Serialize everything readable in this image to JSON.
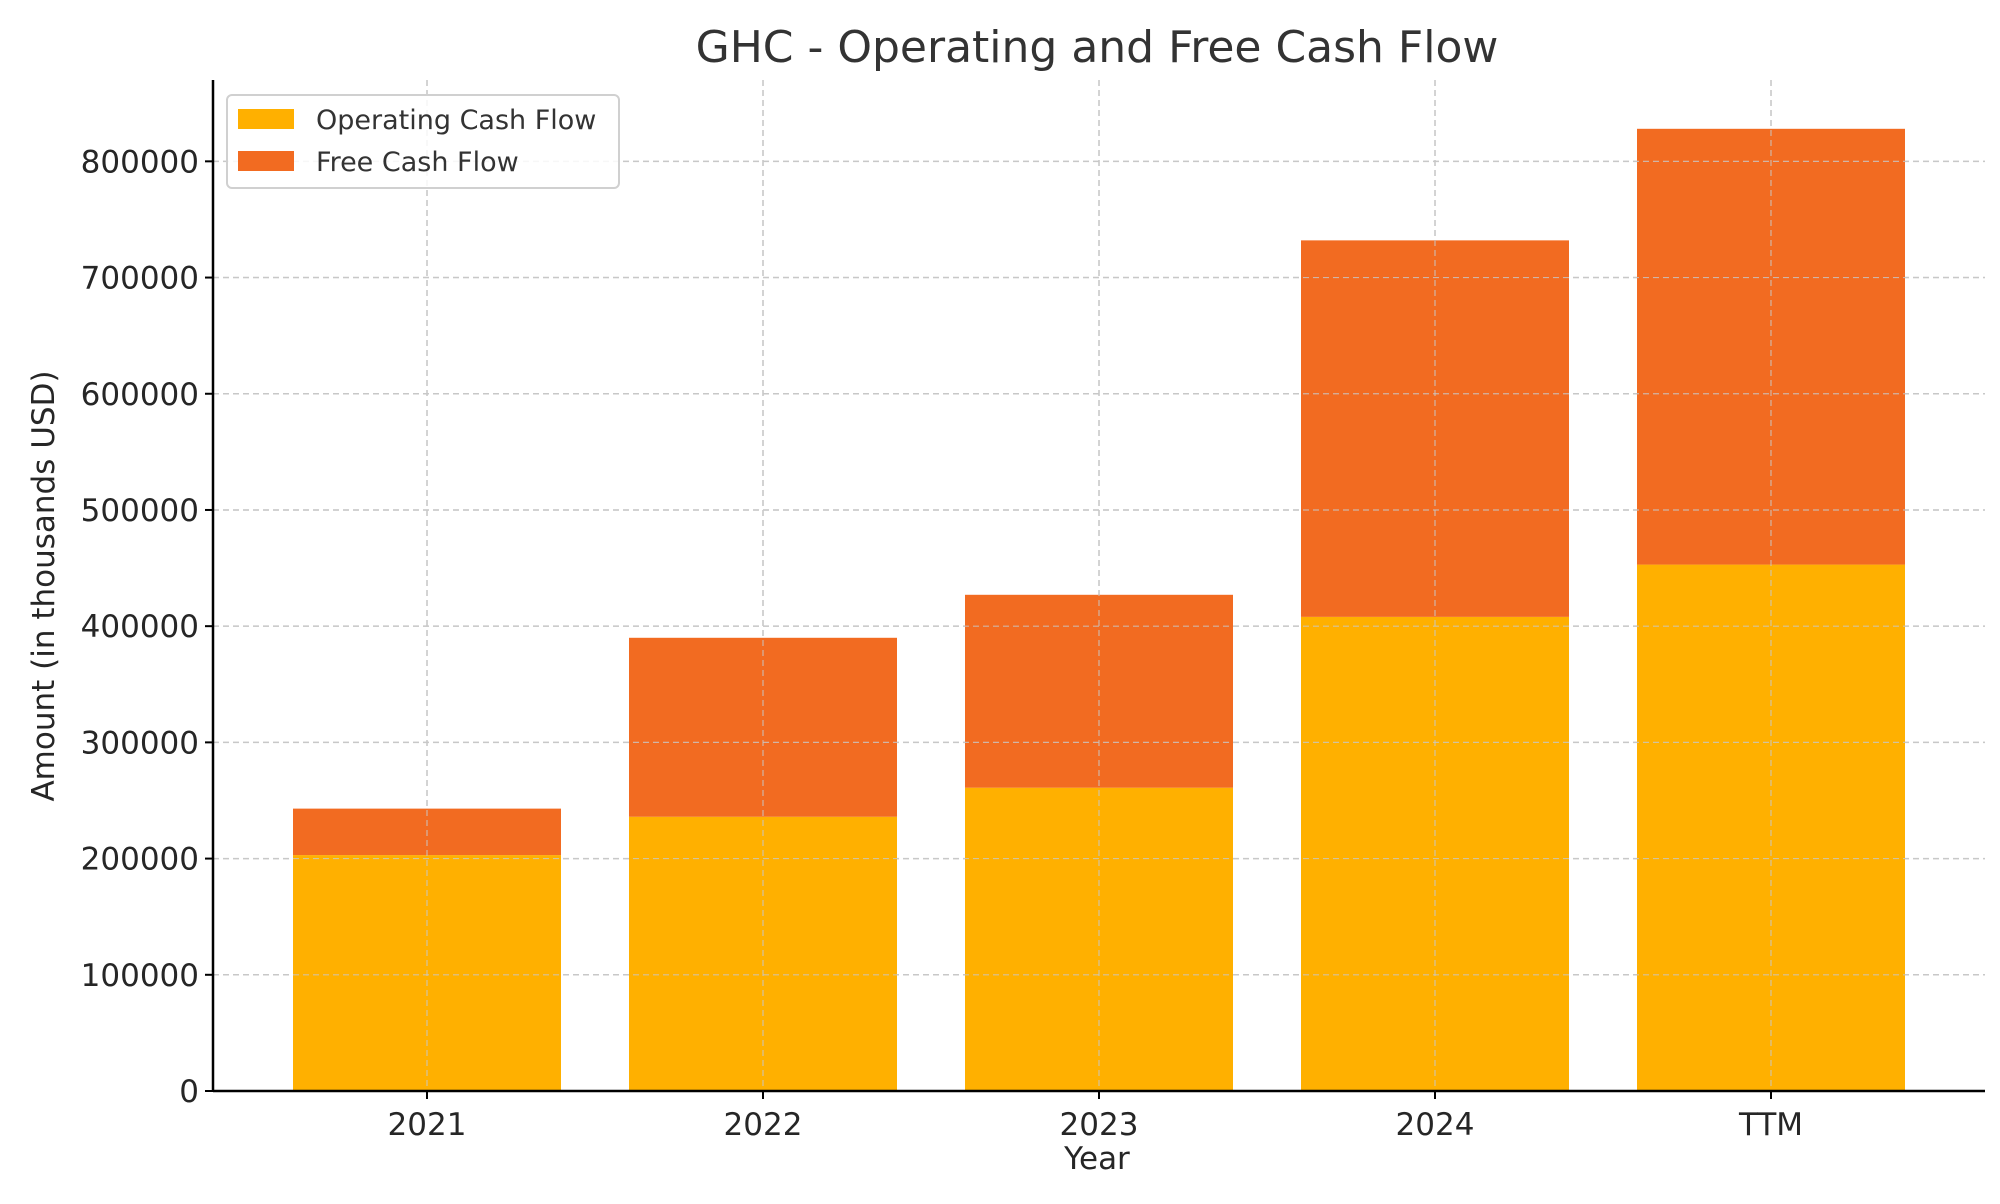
{
  "chart_data": {
    "type": "bar",
    "stacked": true,
    "title": "GHC - Operating and Free Cash Flow",
    "xlabel": "Year",
    "ylabel": "Amount (in thousands USD)",
    "categories": [
      "2021",
      "2022",
      "2023",
      "2024",
      "TTM"
    ],
    "series": [
      {
        "name": "Operating Cash Flow",
        "color": "#FFB000",
        "values": [
          203000,
          236000,
          261000,
          408000,
          453000
        ]
      },
      {
        "name": "Free Cash Flow",
        "color": "#F26B21",
        "values": [
          40000,
          154000,
          166000,
          324000,
          375000
        ]
      }
    ],
    "ylim": [
      0,
      870000
    ],
    "yticks": [
      0,
      100000,
      200000,
      300000,
      400000,
      500000,
      600000,
      700000,
      800000
    ],
    "grid": true,
    "legend_position": "top-left"
  }
}
